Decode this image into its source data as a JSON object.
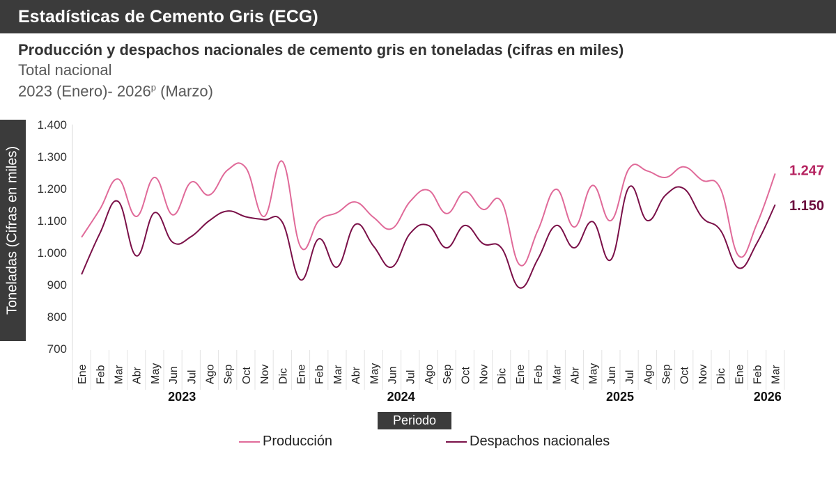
{
  "header": {
    "banner_title": "Estadísticas de Cemento Gris (ECG)",
    "title": "Producción y despachos nacionales de cemento gris en toneladas (cifras en miles)",
    "subtitle_1": "Total nacional",
    "subtitle_2_pre": "2023 (Enero)- 2026",
    "subtitle_2_sup": "p",
    "subtitle_2_post": " (Marzo)"
  },
  "chart_data": {
    "type": "line",
    "ylabel": "Toneladas (Cifras en miles)",
    "xlabel": "Periodo",
    "ylim": [
      700,
      1400
    ],
    "yticks": [
      "700",
      "800",
      "900",
      "1.000",
      "1.100",
      "1.200",
      "1.300",
      "1.400"
    ],
    "months": [
      "Ene",
      "Feb",
      "Mar",
      "Abr",
      "May",
      "Jun",
      "Jul",
      "Ago",
      "Sep",
      "Oct",
      "Nov",
      "Dic",
      "Ene",
      "Feb",
      "Mar",
      "Abr",
      "May",
      "Jun",
      "Jul",
      "Ago",
      "Sep",
      "Oct",
      "Nov",
      "Dic",
      "Ene",
      "Feb",
      "Mar",
      "Abr",
      "May",
      "Jun",
      "Jul",
      "Ago",
      "Sep",
      "Oct",
      "Nov",
      "Dic",
      "Ene",
      "Feb",
      "Mar"
    ],
    "years": [
      {
        "label": "2023",
        "start": 0,
        "end": 11
      },
      {
        "label": "2024",
        "start": 12,
        "end": 23
      },
      {
        "label": "2025",
        "start": 24,
        "end": 35
      },
      {
        "label": "2026",
        "start": 36,
        "end": 38
      }
    ],
    "grid": false,
    "legend_position": "bottom",
    "series": [
      {
        "name": "Producción",
        "color": "#e06a99",
        "end_label": "1.247",
        "values": [
          1048,
          1135,
          1230,
          1113,
          1235,
          1118,
          1220,
          1180,
          1258,
          1265,
          1113,
          1285,
          1018,
          1100,
          1125,
          1158,
          1110,
          1075,
          1160,
          1195,
          1122,
          1190,
          1135,
          1160,
          962,
          1070,
          1198,
          1080,
          1210,
          1100,
          1263,
          1255,
          1235,
          1268,
          1226,
          1200,
          990,
          1090,
          1247
        ]
      },
      {
        "name": "Despachos nacionales",
        "color": "#7a1048",
        "end_label": "1.150",
        "values": [
          932,
          1060,
          1160,
          990,
          1125,
          1032,
          1050,
          1100,
          1130,
          1112,
          1103,
          1095,
          915,
          1043,
          955,
          1088,
          1020,
          955,
          1060,
          1085,
          1015,
          1085,
          1028,
          1015,
          890,
          980,
          1085,
          1015,
          1097,
          978,
          1205,
          1100,
          1180,
          1200,
          1110,
          1070,
          952,
          1030,
          1150
        ]
      }
    ]
  }
}
